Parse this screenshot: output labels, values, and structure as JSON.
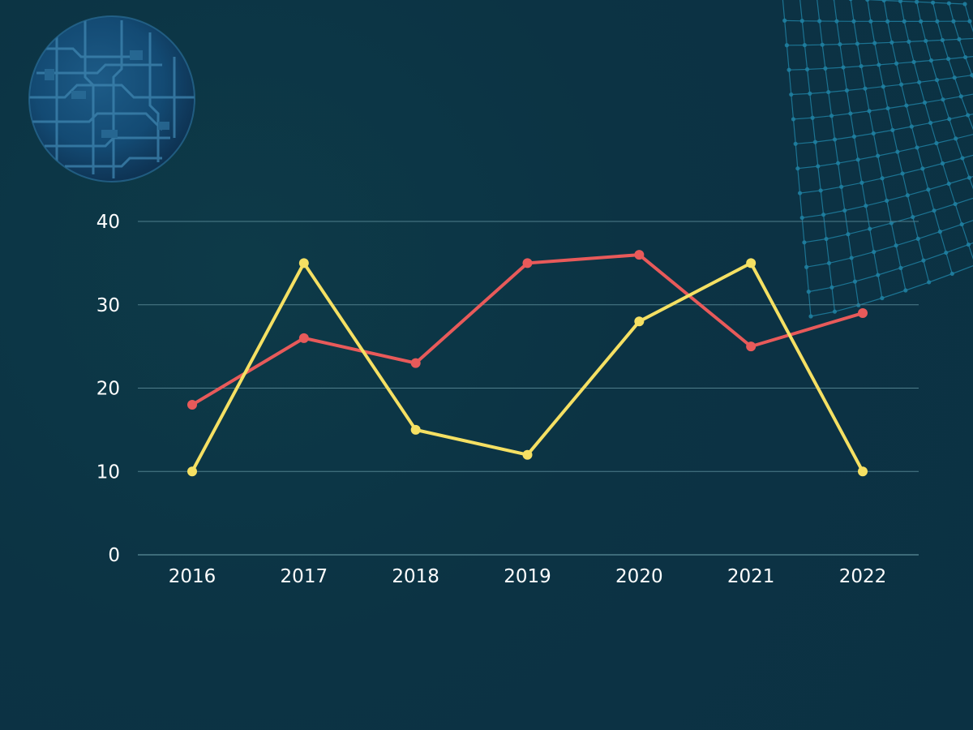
{
  "chart_data": {
    "type": "line",
    "categories": [
      "2016",
      "2017",
      "2018",
      "2019",
      "2020",
      "2021",
      "2022"
    ],
    "series": [
      {
        "values": [
          18,
          26,
          23,
          35,
          36,
          25,
          29
        ]
      },
      {
        "values": [
          10,
          35,
          15,
          12,
          28,
          35,
          10
        ]
      }
    ],
    "ylim": [
      0,
      40
    ],
    "yticks": [
      "0",
      "10",
      "20",
      "30",
      "40"
    ],
    "grid": true,
    "legend": "none",
    "title": "",
    "xlabel": "",
    "ylabel": ""
  },
  "colors": {
    "background": "#0b3143",
    "series": [
      "#e85a5a",
      "#f5e063"
    ],
    "grid": "#4f7e8c",
    "text": "#ffffff",
    "decoration": "#1f7fa0"
  },
  "decorations": [
    "circuit-globe-icon",
    "mesh-sphere-icon"
  ]
}
